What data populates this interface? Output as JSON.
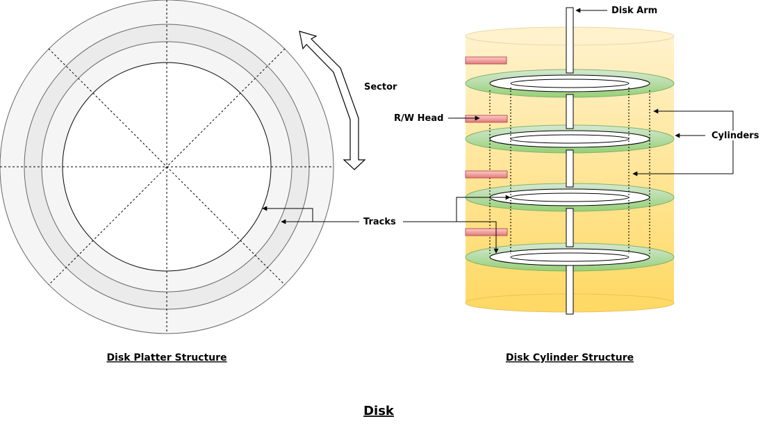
{
  "title": "Disk",
  "platter": {
    "caption": "Disk Platter Structure",
    "sector_label": "Sector",
    "tracks_label": "Tracks"
  },
  "cylinder": {
    "caption": "Disk Cylinder Structure",
    "disk_arm_label": "Disk Arm",
    "rw_head_label": "R/W Head",
    "cylinders_label": "Cylinders"
  },
  "colors": {
    "platter_outer": "#f5f5f5",
    "platter_band": "#ebebeb",
    "cylinder_top": "#fff2cc",
    "cylinder_bottom": "#ffd966",
    "disk_green_light": "#d5e8d4",
    "disk_green_dark": "#97d077",
    "head_fill": "#f19c99",
    "head_stroke": "#b85450"
  }
}
